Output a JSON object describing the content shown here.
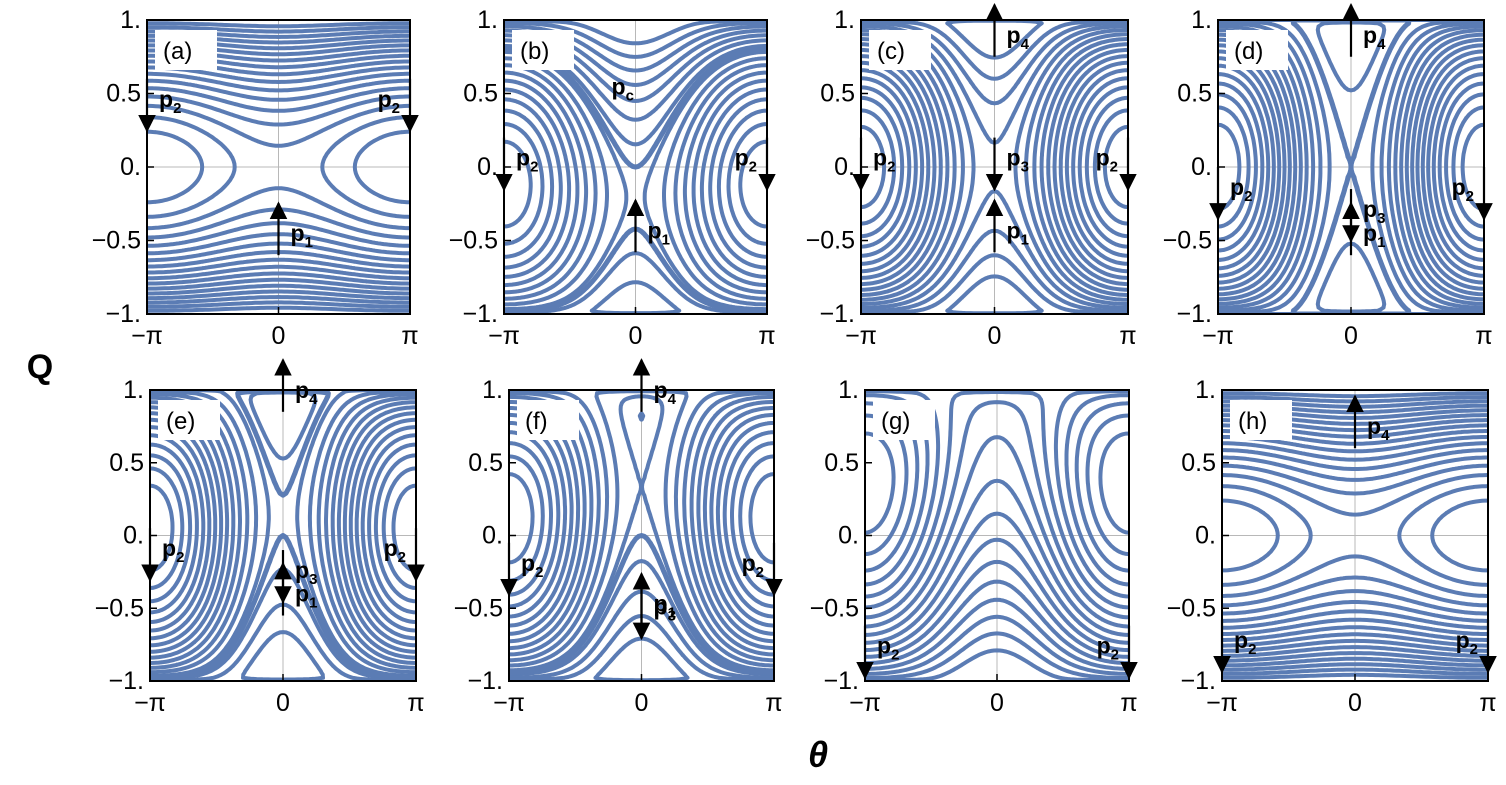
{
  "figure": {
    "y_axis_label": "Q",
    "x_axis_label": "θ"
  },
  "chart_data": [
    {
      "type": "line",
      "panel": "(a)",
      "xlim": [
        "-π",
        "π"
      ],
      "ylim": [
        -1,
        1
      ],
      "xticks": [
        "−π",
        "0",
        "π"
      ],
      "yticks": [
        "1.",
        "0.5",
        "0.",
        "−0.5",
        "−1."
      ],
      "grid": "axes through origin",
      "contours": {
        "C": 0.0,
        "A": 0.08,
        "separatrix": false
      },
      "markers": [
        {
          "label": "p",
          "sub": "2",
          "theta": -3.14159,
          "Q": 0.6,
          "dir": "down"
        },
        {
          "label": "p",
          "sub": "2",
          "theta": 3.14159,
          "Q": 0.6,
          "dir": "down"
        },
        {
          "label": "p",
          "sub": "1",
          "theta": 0,
          "Q": -0.6,
          "dir": "up"
        }
      ]
    },
    {
      "type": "line",
      "panel": "(b)",
      "xlim": [
        "-π",
        "π"
      ],
      "ylim": [
        -1,
        1
      ],
      "xticks": [
        "−π",
        "0",
        "π"
      ],
      "yticks": [
        "1.",
        "0.5",
        "0.",
        "−0.5",
        "−1."
      ],
      "grid": "axes through origin",
      "contours": {
        "C": -0.3,
        "A": 0.55,
        "separatrix": true
      },
      "annotation": {
        "label": "p",
        "sub": "c",
        "theta": 0,
        "Q": 0.48
      },
      "markers": [
        {
          "label": "p",
          "sub": "2",
          "theta": -3.14159,
          "Q": 0.2,
          "dir": "down"
        },
        {
          "label": "p",
          "sub": "2",
          "theta": 3.14159,
          "Q": 0.2,
          "dir": "down"
        },
        {
          "label": "p",
          "sub": "1",
          "theta": 0,
          "Q": -0.58,
          "dir": "up"
        }
      ]
    },
    {
      "type": "line",
      "panel": "(c)",
      "xlim": [
        "-π",
        "π"
      ],
      "ylim": [
        -1,
        1
      ],
      "xticks": [
        "−π",
        "0",
        "π"
      ],
      "yticks": [
        "1.",
        "0.5",
        "0.",
        "−0.5",
        "−1."
      ],
      "grid": "axes through origin",
      "contours": {
        "C": 0.0,
        "A": 0.7,
        "separatrix": false
      },
      "markers": [
        {
          "label": "p",
          "sub": "2",
          "theta": -3.14159,
          "Q": 0.2,
          "dir": "down"
        },
        {
          "label": "p",
          "sub": "2",
          "theta": 3.14159,
          "Q": 0.2,
          "dir": "down"
        },
        {
          "label": "p",
          "sub": "4",
          "theta": 0,
          "Q": 0.75,
          "dir": "up"
        },
        {
          "label": "p",
          "sub": "3",
          "theta": 0,
          "Q": 0.2,
          "dir": "down"
        },
        {
          "label": "p",
          "sub": "1",
          "theta": 0,
          "Q": -0.58,
          "dir": "up"
        }
      ]
    },
    {
      "type": "line",
      "panel": "(d)",
      "xlim": [
        "-π",
        "π"
      ],
      "ylim": [
        -1,
        1
      ],
      "xticks": [
        "−π",
        "0",
        "π"
      ],
      "yticks": [
        "1.",
        "0.5",
        "0.",
        "−0.5",
        "−1."
      ],
      "grid": "axes through origin",
      "contours": {
        "C": 0.0,
        "A": 1.0,
        "separatrix": true
      },
      "markers": [
        {
          "label": "p",
          "sub": "4",
          "theta": 0,
          "Q": 0.75,
          "dir": "up"
        },
        {
          "label": "p",
          "sub": "2",
          "theta": -3.14159,
          "Q": 0.0,
          "dir": "down"
        },
        {
          "label": "p",
          "sub": "2",
          "theta": 3.14159,
          "Q": 0.0,
          "dir": "down"
        },
        {
          "label": "p",
          "sub": "3",
          "theta": 0,
          "Q": -0.15,
          "dir": "down"
        },
        {
          "label": "p",
          "sub": "1",
          "theta": 0,
          "Q": -0.6,
          "dir": "up"
        }
      ]
    },
    {
      "type": "line",
      "panel": "(e)",
      "xlim": [
        "-π",
        "π"
      ],
      "ylim": [
        -1,
        1
      ],
      "xticks": [
        "−π",
        "0",
        "π"
      ],
      "yticks": [
        "1.",
        "0.5",
        "0.",
        "−0.5",
        "−1."
      ],
      "grid": "axes through origin",
      "contours": {
        "C": 0.15,
        "A": 0.9,
        "separatrix": true
      },
      "markers": [
        {
          "label": "p",
          "sub": "4",
          "theta": 0,
          "Q": 0.85,
          "dir": "up"
        },
        {
          "label": "p",
          "sub": "2",
          "theta": -3.14159,
          "Q": 0.05,
          "dir": "down"
        },
        {
          "label": "p",
          "sub": "2",
          "theta": 3.14159,
          "Q": 0.05,
          "dir": "down"
        },
        {
          "label": "p",
          "sub": "3",
          "theta": 0,
          "Q": -0.1,
          "dir": "down"
        },
        {
          "label": "p",
          "sub": "1",
          "theta": 0,
          "Q": -0.55,
          "dir": "up"
        }
      ]
    },
    {
      "type": "line",
      "panel": "(f)",
      "xlim": [
        "-π",
        "π"
      ],
      "ylim": [
        -1,
        1
      ],
      "xticks": [
        "−π",
        "0",
        "π"
      ],
      "yticks": [
        "1.",
        "0.5",
        "0.",
        "−0.5",
        "−1."
      ],
      "grid": "axes through origin",
      "contours": {
        "C": 0.35,
        "A": 0.9,
        "separatrix": true
      },
      "markers": [
        {
          "label": "p",
          "sub": "4",
          "theta": 0,
          "Q": 0.85,
          "dir": "up"
        },
        {
          "label": "p",
          "sub": "2",
          "theta": -3.14159,
          "Q": -0.05,
          "dir": "down"
        },
        {
          "label": "p",
          "sub": "2",
          "theta": 3.14159,
          "Q": -0.05,
          "dir": "down"
        },
        {
          "label": "p",
          "sub": "3",
          "theta": 0,
          "Q": -0.35,
          "dir": "down"
        },
        {
          "label": "p",
          "sub": "1",
          "theta": 0,
          "Q": -0.62,
          "dir": "up"
        }
      ]
    },
    {
      "type": "line",
      "panel": "(g)",
      "xlim": [
        "-π",
        "π"
      ],
      "ylim": [
        -1,
        1
      ],
      "xticks": [
        "−π",
        "0",
        "π"
      ],
      "yticks": [
        "1.",
        "0.5",
        "0.",
        "−0.5",
        "−1."
      ],
      "grid": "axes through origin",
      "contours": {
        "C": 1.1,
        "A": 0.9,
        "separatrix": false
      },
      "markers": [
        {
          "label": "p",
          "sub": "2",
          "theta": -3.14159,
          "Q": -0.62,
          "dir": "down"
        },
        {
          "label": "p",
          "sub": "2",
          "theta": 3.14159,
          "Q": -0.62,
          "dir": "down"
        }
      ]
    },
    {
      "type": "line",
      "panel": "(h)",
      "xlim": [
        "-π",
        "π"
      ],
      "ylim": [
        -1,
        1
      ],
      "xticks": [
        "−π",
        "0",
        "π"
      ],
      "yticks": [
        "1.",
        "0.5",
        "0.",
        "−0.5",
        "−1."
      ],
      "grid": "axes through origin",
      "contours": {
        "C": 0.0,
        "A": 0.08,
        "separatrix": false
      },
      "markers": [
        {
          "label": "p",
          "sub": "4",
          "theta": 0,
          "Q": 0.6,
          "dir": "up"
        },
        {
          "label": "p",
          "sub": "2",
          "theta": -3.14159,
          "Q": -0.58,
          "dir": "down"
        },
        {
          "label": "p",
          "sub": "2",
          "theta": 3.14159,
          "Q": -0.58,
          "dir": "down"
        }
      ]
    }
  ]
}
